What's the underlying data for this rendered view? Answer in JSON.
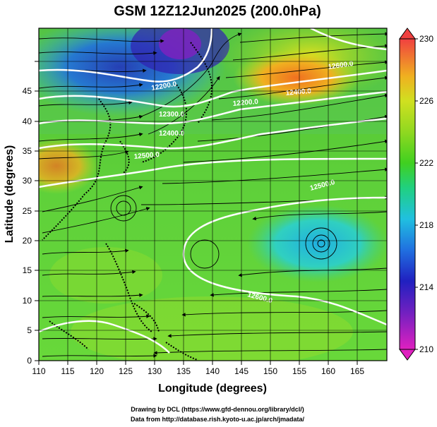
{
  "title": "GSM 12Z12Jun2025 (200.0hPa)",
  "xlabel": "Longitude (degrees)",
  "ylabel": "Latitude (degrees)",
  "xticks": [
    "110",
    "115",
    "120",
    "125",
    "130",
    "135",
    "140",
    "145",
    "150",
    "155",
    "160",
    "165"
  ],
  "yticks": [
    "0",
    "5",
    "10",
    "15",
    "20",
    "25",
    "30",
    "35",
    "40",
    "45"
  ],
  "colorbar": {
    "ticks": [
      "230",
      "226",
      "222",
      "218",
      "214",
      "210"
    ],
    "min": 210,
    "max": 230,
    "colors": [
      "#e020c0",
      "#8020c0",
      "#2020c0",
      "#2070e0",
      "#20c0e0",
      "#20d080",
      "#40d020",
      "#80d020",
      "#c0e020",
      "#e0d020",
      "#f09020",
      "#f04040"
    ]
  },
  "contour_labels": [
    "12200.0",
    "12200.0",
    "12300.0",
    "12400.0",
    "12500.0",
    "12500.0",
    "12600.0",
    "12600.0",
    "12400.0"
  ],
  "credits": {
    "line1": "Drawing by DCL (https://www.gfd-dennou.org/library/dcl/)",
    "line2": "Data from http://database.rish.kyoto-u.ac.jp/arch/jmadata/"
  },
  "chart_data": {
    "type": "heatmap",
    "title": "GSM 12Z12Jun2025 (200.0hPa)",
    "xlabel": "Longitude (degrees)",
    "ylabel": "Latitude (degrees)",
    "xlim": [
      110,
      170
    ],
    "ylim": [
      0,
      50
    ],
    "colorbar_range": [
      210,
      230
    ],
    "colorbar_ticks": [
      210,
      214,
      218,
      222,
      226,
      230
    ],
    "grid": true,
    "features": [
      "temperature shading",
      "geopotential height contours",
      "wind streamlines",
      "coastlines"
    ]
  }
}
